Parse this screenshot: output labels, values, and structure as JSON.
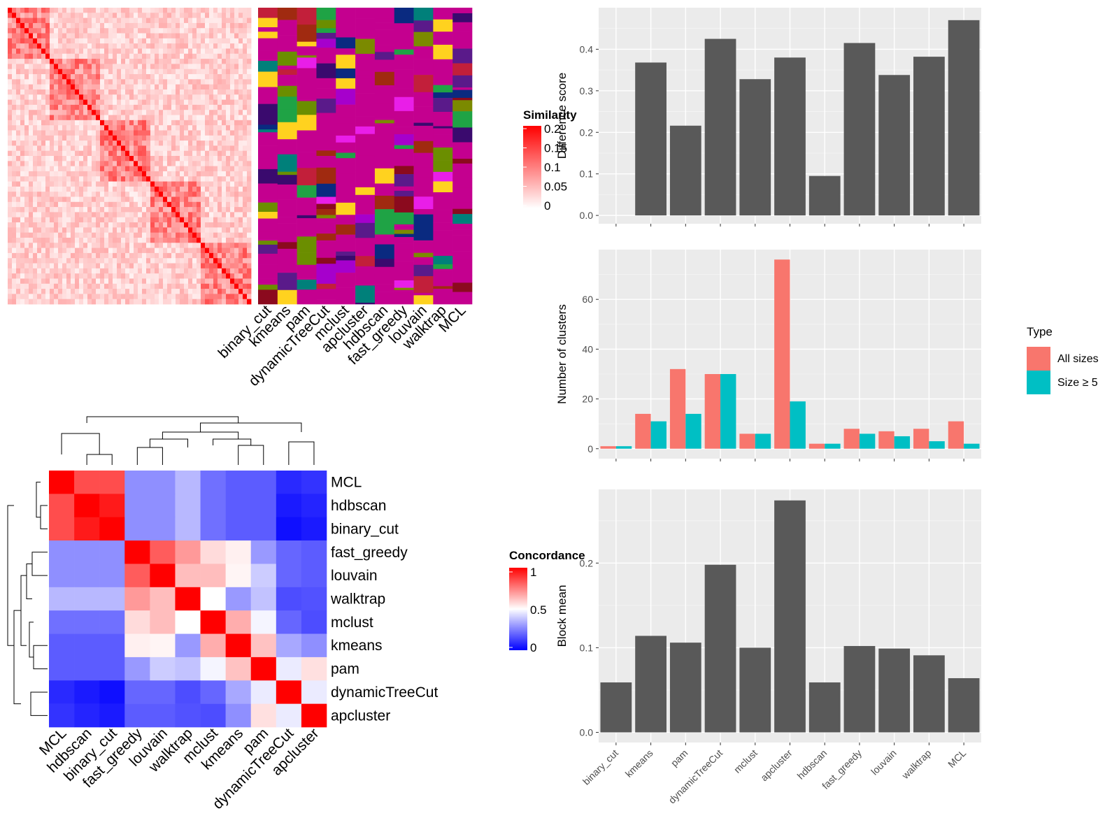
{
  "methods": [
    "binary_cut",
    "kmeans",
    "pam",
    "dynamicTreeCut",
    "mclust",
    "apcluster",
    "hdbscan",
    "fast_greedy",
    "louvain",
    "walktrap",
    "MCL"
  ],
  "similarity_legend": {
    "title": "Similarity",
    "tick_labels": [
      "0.2",
      "0.15",
      "0.1",
      "0.05",
      "0"
    ]
  },
  "concordance_legend": {
    "title": "Concordance",
    "tick_labels": [
      "1",
      "0.5",
      "0"
    ]
  },
  "concordance_order": [
    "MCL",
    "hdbscan",
    "binary_cut",
    "fast_greedy",
    "louvain",
    "walktrap",
    "mclust",
    "kmeans",
    "pam",
    "dynamicTreeCut",
    "apcluster"
  ],
  "colors": {
    "bar_gray": "#595959",
    "panel_bg": "#EBEBEB",
    "all_sizes": "#F8766D",
    "size_ge5": "#00BFC4",
    "heat_red": "#FF0000",
    "heat_white": "#FFFFFF",
    "heat_blue": "#0000FF"
  },
  "chart_data": [
    {
      "type": "heatmap",
      "title": "",
      "description_source": "similarity matrix of terms with cluster assignment columns",
      "columns": [
        "binary_cut",
        "kmeans",
        "pam",
        "dynamicTreeCut",
        "mclust",
        "apcluster",
        "hdbscan",
        "fast_greedy",
        "louvain",
        "walktrap",
        "MCL"
      ],
      "legend_title": "Similarity",
      "legend_range": [
        0,
        0.2
      ]
    },
    {
      "type": "bar",
      "categories": [
        "binary_cut",
        "kmeans",
        "pam",
        "dynamicTreeCut",
        "mclust",
        "apcluster",
        "hdbscan",
        "fast_greedy",
        "louvain",
        "walktrap",
        "MCL"
      ],
      "values": [
        0,
        0.368,
        0.216,
        0.425,
        0.328,
        0.38,
        0.095,
        0.415,
        0.338,
        0.382,
        0.47
      ],
      "xlabel": "",
      "ylabel": "Difference score",
      "ylim": [
        -0.02,
        0.5
      ],
      "y_ticks": [
        "0.0",
        "0.1",
        "0.2",
        "0.3",
        "0.4"
      ],
      "grid": true
    },
    {
      "type": "bar",
      "categories": [
        "binary_cut",
        "kmeans",
        "pam",
        "dynamicTreeCut",
        "mclust",
        "apcluster",
        "hdbscan",
        "fast_greedy",
        "louvain",
        "walktrap",
        "MCL"
      ],
      "series": [
        {
          "name": "All sizes",
          "values": [
            1,
            14,
            32,
            30,
            6,
            76,
            2,
            8,
            7,
            8,
            11
          ]
        },
        {
          "name": "Size ≥ 5",
          "values": [
            1,
            11,
            14,
            30,
            6,
            19,
            2,
            6,
            5,
            3,
            2
          ]
        }
      ],
      "xlabel": "",
      "ylabel": "Number of clusters",
      "ylim": [
        -4,
        80
      ],
      "y_ticks": [
        "0",
        "20",
        "40",
        "60"
      ],
      "legend_title": "Type",
      "legend_position": "right",
      "grid": true
    },
    {
      "type": "bar",
      "categories": [
        "binary_cut",
        "kmeans",
        "pam",
        "dynamicTreeCut",
        "mclust",
        "apcluster",
        "hdbscan",
        "fast_greedy",
        "louvain",
        "walktrap",
        "MCL"
      ],
      "values": [
        0.059,
        0.114,
        0.106,
        0.198,
        0.1,
        0.274,
        0.059,
        0.102,
        0.099,
        0.091,
        0.064
      ],
      "xlabel": "",
      "ylabel": "Block mean",
      "ylim": [
        -0.012,
        0.287
      ],
      "y_ticks": [
        "0.0",
        "0.1",
        "0.2"
      ],
      "grid": true
    },
    {
      "type": "heatmap",
      "legend_title": "Concordance",
      "legend_range": [
        0,
        1
      ],
      "rows": [
        "MCL",
        "hdbscan",
        "binary_cut",
        "fast_greedy",
        "louvain",
        "walktrap",
        "mclust",
        "kmeans",
        "pam",
        "dynamicTreeCut",
        "apcluster"
      ],
      "columns": [
        "MCL",
        "hdbscan",
        "binary_cut",
        "fast_greedy",
        "louvain",
        "walktrap",
        "mclust",
        "kmeans",
        "pam",
        "dynamicTreeCut",
        "apcluster"
      ],
      "matrix": [
        [
          1.0,
          0.85,
          0.85,
          0.28,
          0.28,
          0.36,
          0.22,
          0.18,
          0.18,
          0.08,
          0.1
        ],
        [
          0.85,
          1.0,
          0.95,
          0.28,
          0.28,
          0.36,
          0.22,
          0.18,
          0.18,
          0.05,
          0.07
        ],
        [
          0.85,
          0.95,
          1.0,
          0.28,
          0.28,
          0.36,
          0.22,
          0.18,
          0.18,
          0.03,
          0.05
        ],
        [
          0.28,
          0.28,
          0.28,
          1.0,
          0.82,
          0.7,
          0.57,
          0.53,
          0.3,
          0.2,
          0.18
        ],
        [
          0.28,
          0.28,
          0.28,
          0.82,
          1.0,
          0.63,
          0.63,
          0.52,
          0.4,
          0.2,
          0.18
        ],
        [
          0.36,
          0.36,
          0.36,
          0.7,
          0.63,
          1.0,
          0.5,
          0.3,
          0.38,
          0.15,
          0.16
        ],
        [
          0.22,
          0.22,
          0.22,
          0.57,
          0.63,
          0.5,
          1.0,
          0.66,
          0.48,
          0.2,
          0.15
        ],
        [
          0.18,
          0.18,
          0.18,
          0.53,
          0.52,
          0.3,
          0.66,
          1.0,
          0.62,
          0.33,
          0.28
        ],
        [
          0.18,
          0.18,
          0.18,
          0.3,
          0.4,
          0.38,
          0.48,
          0.62,
          1.0,
          0.46,
          0.56
        ],
        [
          0.08,
          0.05,
          0.03,
          0.2,
          0.2,
          0.15,
          0.2,
          0.33,
          0.46,
          1.0,
          0.46
        ],
        [
          0.1,
          0.07,
          0.05,
          0.18,
          0.18,
          0.16,
          0.15,
          0.28,
          0.56,
          0.46,
          1.0
        ]
      ]
    }
  ]
}
